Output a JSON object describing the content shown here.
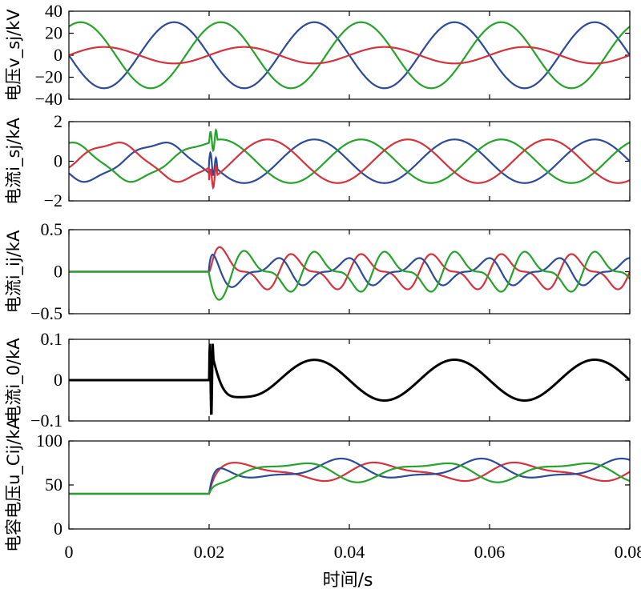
{
  "chart_data": [
    {
      "type": "line",
      "ylabel": "电压v_sj/kV",
      "ylim": [
        -40,
        40
      ],
      "yticks": [
        -40,
        -20,
        0,
        20,
        40
      ],
      "xlim": [
        0,
        0.08
      ],
      "series": [
        {
          "color": "#2c4a9a",
          "model": {
            "kind": "sine",
            "amplitude": 30,
            "phase_deg": 180,
            "freq": 50
          }
        },
        {
          "color": "#25a32a",
          "model": {
            "kind": "sine",
            "amplitude": 30,
            "phase_deg": 60,
            "freq": 50
          }
        },
        {
          "color": "#d6323c",
          "model": {
            "kind": "sine",
            "amplitude": 7.5,
            "phase_deg": 0,
            "freq": 50
          }
        }
      ]
    },
    {
      "type": "line",
      "ylabel": "电流i_sj/kA",
      "ylim": [
        -2,
        2
      ],
      "yticks": [
        -2,
        0,
        2
      ],
      "xlim": [
        0,
        0.08
      ],
      "series": [
        {
          "color": "#2c4a9a",
          "model": {
            "kind": "sine",
            "amplitude": 1.1,
            "phase_deg": 180,
            "freq": 50
          }
        },
        {
          "color": "#25a32a",
          "model": {
            "kind": "sine",
            "amplitude": 1.1,
            "phase_deg": 60,
            "freq": 50
          }
        },
        {
          "color": "#d6323c",
          "model": {
            "kind": "sine",
            "amplitude": 1.1,
            "phase_deg": -60,
            "freq": 50
          }
        }
      ],
      "event_time": 0.02
    },
    {
      "type": "line",
      "ylabel": "电流i_ij/kA",
      "ylim": [
        -0.5,
        0.5
      ],
      "yticks": [
        -0.5,
        0,
        0.5
      ],
      "xlim": [
        0,
        0.08
      ],
      "series": [
        {
          "color": "#d6323c",
          "model": {
            "kind": "ripple",
            "amplitude": 0.22,
            "phase_deg": 0,
            "freq": 100
          }
        },
        {
          "color": "#2c4a9a",
          "model": {
            "kind": "ripple",
            "amplitude": 0.17,
            "phase_deg": 120,
            "freq": 100
          }
        },
        {
          "color": "#25a32a",
          "model": {
            "kind": "ripple",
            "amplitude": 0.25,
            "phase_deg": 240,
            "freq": 100
          }
        }
      ],
      "event_time": 0.02
    },
    {
      "type": "line",
      "ylabel": "电流i_0/kA",
      "ylim": [
        -0.1,
        0.1
      ],
      "yticks": [
        -0.1,
        0,
        0.1
      ],
      "xlim": [
        0,
        0.08
      ],
      "series": [
        {
          "color": "#000000",
          "model": {
            "kind": "circulating",
            "amplitude": 0.05,
            "freq": 50,
            "peak": 0.09
          }
        }
      ],
      "event_time": 0.02
    },
    {
      "type": "line",
      "ylabel": "电容电压u_Cij/kA",
      "ylim": [
        0,
        100
      ],
      "yticks": [
        0,
        50,
        100
      ],
      "xlim": [
        0,
        0.08
      ],
      "xlabel": "时间/s",
      "xticks": [
        "0",
        "0.02",
        "0.04",
        "0.06",
        "0.08"
      ],
      "series": [
        {
          "color": "#d6323c",
          "model": {
            "kind": "capacitor",
            "base": 65,
            "amplitude": 11,
            "phase_deg": 0,
            "freq": 50
          }
        },
        {
          "color": "#2c4a9a",
          "model": {
            "kind": "capacitor",
            "base": 67,
            "amplitude": 12,
            "phase_deg": 120,
            "freq": 50
          }
        },
        {
          "color": "#25a32a",
          "model": {
            "kind": "capacitor",
            "base": 66,
            "amplitude": 12,
            "phase_deg": 240,
            "freq": 50
          }
        }
      ],
      "initial_value": 40,
      "event_time": 0.02
    }
  ]
}
